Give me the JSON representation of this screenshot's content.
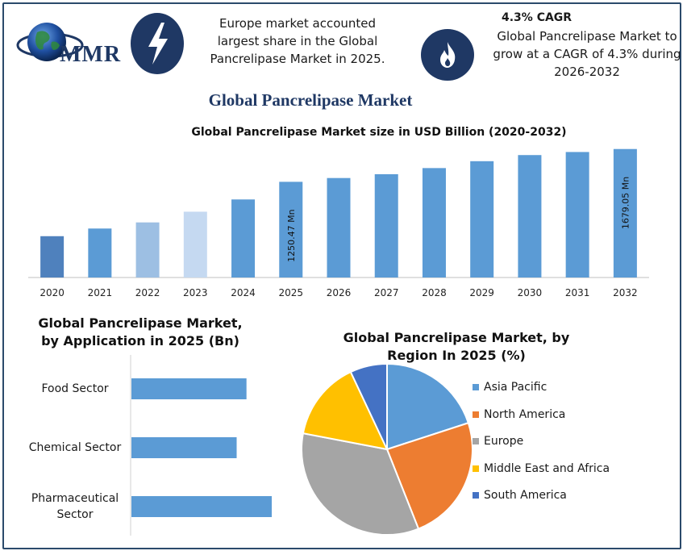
{
  "header": {
    "logo_text": "MMR",
    "highlight_text": "Europe market accounted largest share in the Global Pancrelipase Market in 2025.",
    "cagr_title": "4.3% CAGR",
    "cagr_text": "Global Pancrelipase Market to grow at a CAGR of 4.3% during 2026-2032",
    "icons": [
      "lightning-icon",
      "flame-icon",
      "globe-icon"
    ]
  },
  "main_title": "Global Pancrelipase Market",
  "colors": {
    "bar_blue": "#5b9bd5",
    "icon_circle": "#1f3864",
    "frame": "#2b4a6b"
  },
  "chart_data": [
    {
      "type": "bar",
      "title": "Global Pancrelipase Market size in USD Billion (2020-2032)",
      "categories": [
        "2020",
        "2021",
        "2022",
        "2023",
        "2024",
        "2025",
        "2026",
        "2027",
        "2028",
        "2029",
        "2030",
        "2031",
        "2032"
      ],
      "values": [
        540,
        640,
        720,
        860,
        1020,
        1250.47,
        1300,
        1350,
        1430,
        1520,
        1600,
        1640,
        1679.05
      ],
      "bar_colors": [
        "#4f81bd",
        "#5b9bd5",
        "#9dbfe3",
        "#c5d9f1",
        "#5b9bd5",
        "#5b9bd5",
        "#5b9bd5",
        "#5b9bd5",
        "#5b9bd5",
        "#5b9bd5",
        "#5b9bd5",
        "#5b9bd5",
        "#5b9bd5"
      ],
      "data_labels": {
        "5": "1250.47 Mn",
        "12": "1679.05 Mn"
      },
      "ylim": [
        0,
        1750
      ],
      "grid": false
    },
    {
      "type": "bar",
      "orientation": "horizontal",
      "title": "Global Pancrelipase Market, by Application in 2025 (Bn)",
      "categories": [
        "Food Sector",
        "Chemical Sector",
        "Pharmaceutical Sector"
      ],
      "category_lines": [
        [
          "Food Sector"
        ],
        [
          "Chemical Sector"
        ],
        [
          "Pharmaceutical",
          "Sector"
        ]
      ],
      "values": [
        0.82,
        0.75,
        1.0
      ],
      "color": "#5b9bd5"
    },
    {
      "type": "pie",
      "title": "Global Pancrelipase Market, by Region In 2025 (%)",
      "labels": [
        "Asia Pacific",
        "North America",
        "Europe",
        "Middle East and Africa",
        "South America"
      ],
      "values": [
        20,
        24,
        34,
        15,
        7
      ],
      "colors": [
        "#5b9bd5",
        "#ed7d31",
        "#a5a5a5",
        "#ffc000",
        "#4472c4"
      ],
      "legend_position": "right"
    }
  ]
}
